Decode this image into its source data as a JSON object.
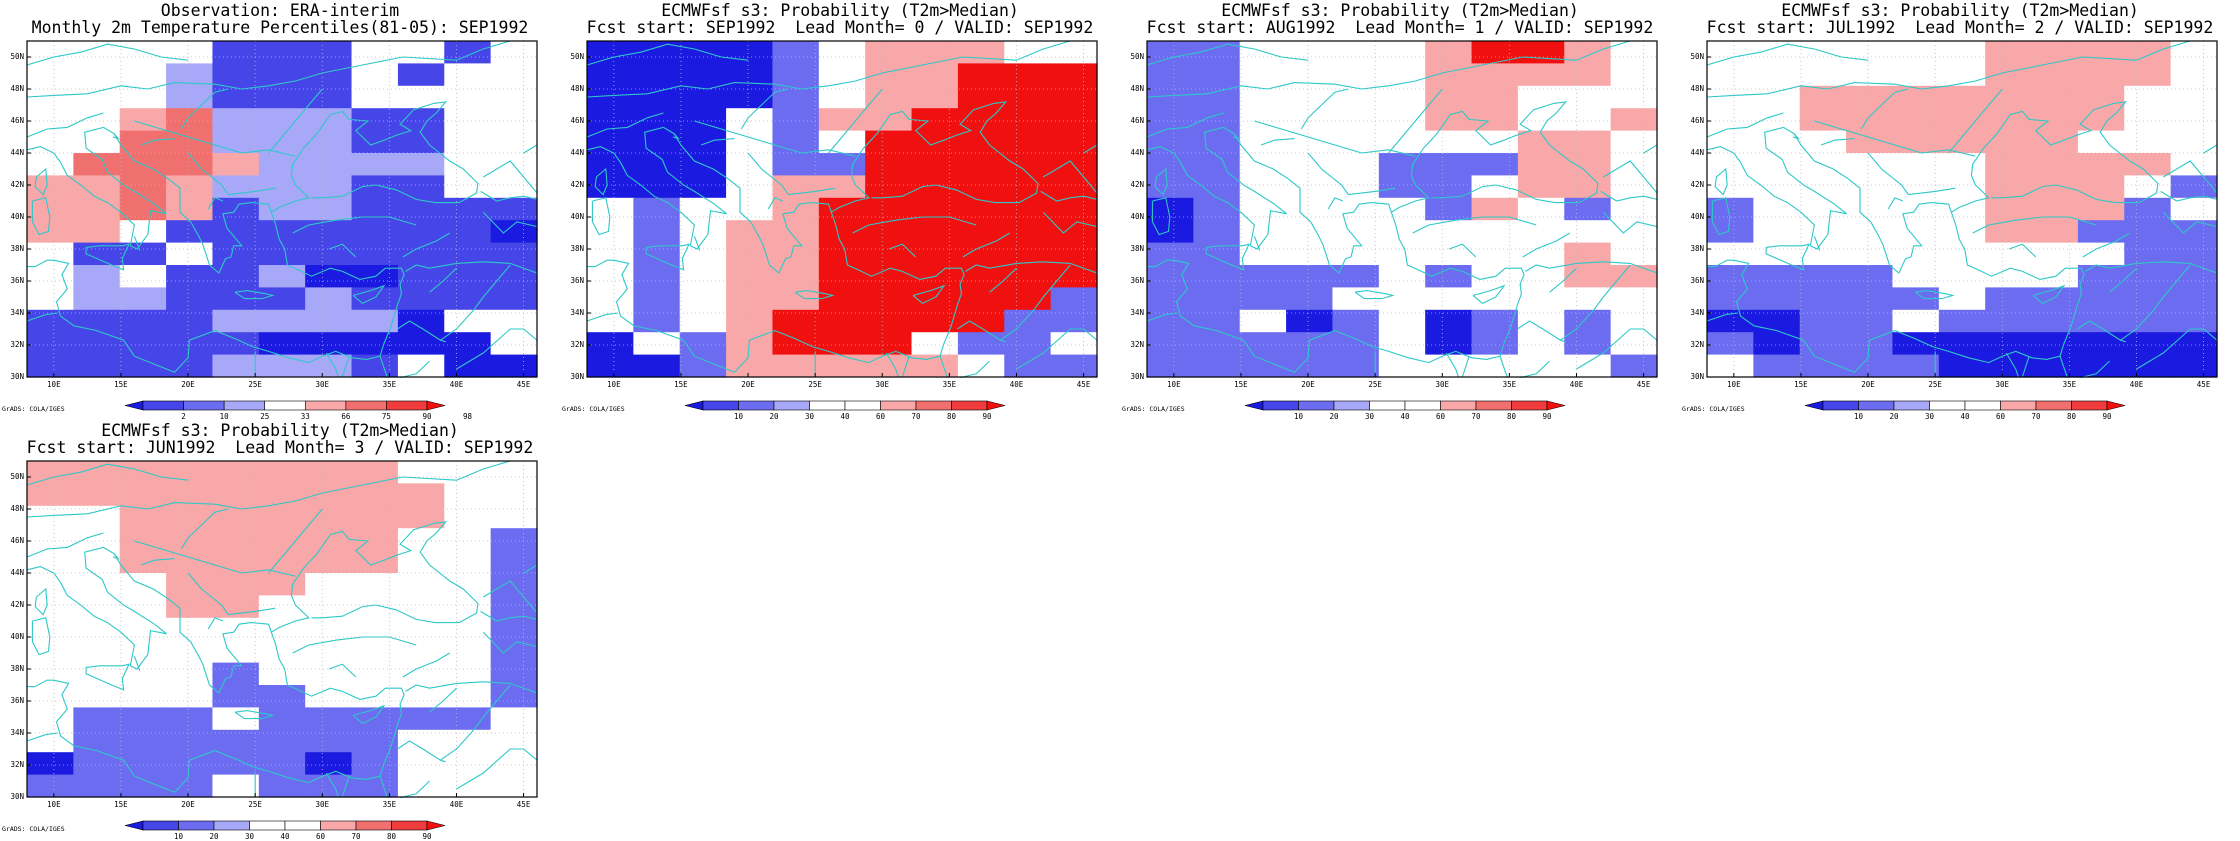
{
  "colors": {
    "legend_obs": [
      "#1a1ae0",
      "#4646e8",
      "#6c6cf0",
      "#a8a8f8",
      "#ffffff",
      "#f8a8a8",
      "#f07070",
      "#f03c3c",
      "#f01010"
    ],
    "legend_prob": [
      "#1a1ae0",
      "#4646e8",
      "#6c6cf0",
      "#a8a8f8",
      "#ffffff",
      "#ffffff",
      "#f8a8a8",
      "#f07070",
      "#f03c3c",
      "#f01010"
    ],
    "coast": "#2ec8c8",
    "grid": "#bbbbbb"
  },
  "map": {
    "lon_range": [
      8,
      46
    ],
    "lat_range": [
      30,
      51
    ],
    "lon_ticks": [
      "10E",
      "15E",
      "20E",
      "25E",
      "30E",
      "35E",
      "40E",
      "45E"
    ],
    "lat_ticks": [
      "30N",
      "32N",
      "34N",
      "36N",
      "38N",
      "40N",
      "42N",
      "44N",
      "46N",
      "48N",
      "50N"
    ],
    "credit": "GrADS: COLA/IGES"
  },
  "panels": [
    {
      "id": "obs",
      "title": "Observation: ERA-interim",
      "subtitle": "Monthly 2m Temperature Percentiles(81-05): SEP1992",
      "legend_type": "obs",
      "legend_labels": [
        "2",
        "10",
        "25",
        "33",
        "66",
        "75",
        "90",
        "98"
      ],
      "grid": [
        "WWWW222WW2W",
        "WWW3222W2WW",
        "WWW3222WWWW",
        "WW5633322WW",
        "WW6633322WW",
        "W66653333WW",
        "556533322WW",
        "55652332222",
        "55W22222221",
        "W22W2222222",
        "W3W22311222",
        "W3322232222",
        "222233331WW",
        "2222211111W",
        "22223332W11"
      ]
    },
    {
      "id": "lead0",
      "title": "ECMWFsf s3: Probability (T2m>Median)",
      "subtitle": "Fcst start: SEP1992  Lead Month= 0 / VALID: SEP1992",
      "legend_type": "prob",
      "legend_labels": [
        "10",
        "20",
        "30",
        "40",
        "60",
        "70",
        "80",
        "90"
      ],
      "grid": [
        "11110W777WW",
        "11110W77888",
        "11110W77888",
        "111W0778888",
        "111W0W88888",
        "111W0088888",
        "111W7788888",
        "W0WW7888888",
        "W0W77888888",
        "W0W77888888",
        "W0W77888888",
        "W0W77888880",
        "W0W78888800",
        "1W07888W00W",
        "11077777W00"
      ]
    },
    {
      "id": "lead1",
      "title": "ECMWFsf s3: Probability (T2m>Median)",
      "subtitle": "Fcst start: AUG1992  Lead Month= 1 / VALID: SEP1992",
      "legend_type": "prob",
      "legend_labels": [
        "10",
        "20",
        "30",
        "40",
        "60",
        "70",
        "80",
        "90"
      ],
      "grid": [
        "00WWWW7887W",
        "00WWWW7777W",
        "00WWWW77WWW",
        "00WWWW77WW7",
        "00WWWWWW77W",
        "00WWW00077W",
        "00WWW00W77W",
        "10WWWW07W0W",
        "10WWWWWWWWW",
        "00WWWWWWW7W",
        "00000W0WW77",
        "0000WWWWWWW",
        "00W10W10W0W",
        "00000W10W0W",
        "00000WWWWW0"
      ]
    },
    {
      "id": "lead2",
      "title": "ECMWFsf s3: Probability (T2m>Median)",
      "subtitle": "Fcst start: JUL1992  Lead Month= 2 / VALID: SEP1992",
      "legend_type": "prob",
      "legend_labels": [
        "10",
        "20",
        "30",
        "40",
        "60",
        "70",
        "80",
        "90"
      ],
      "grid": [
        "WWWWWW7777W",
        "WWWWWW7777W",
        "WW7777777WW",
        "WW7777777WW",
        "WWW77777WWW",
        "WWWWWW7777W",
        "WWWWWW777W0",
        "0WWWWW7770W",
        "0WWWWW77000",
        "WWWWWWWWW00",
        "0000WWWW000",
        "00000W00000",
        "1100W000000",
        "01001111111",
        "W0000111111"
      ]
    },
    {
      "id": "lead3",
      "title": "ECMWFsf s3: Probability (T2m>Median)",
      "subtitle": "Fcst start: JUN1992  Lead Month= 3 / VALID: SEP1992",
      "legend_type": "prob",
      "legend_labels": [
        "10",
        "20",
        "30",
        "40",
        "60",
        "70",
        "80",
        "90"
      ],
      "grid": [
        "77777777WWW",
        "777777777WW",
        "WW7777777WW",
        "WW777777WW0",
        "WW777777WW0",
        "WWW777WWWW0",
        "WWW77WWWWW0",
        "WWWWWWWWWW0",
        "WWWWWWWWWW0",
        "WWWW0WWWWW0",
        "WWWW00WWWW0",
        "W000W00000W",
        "W0000000WWW",
        "10000010WWW",
        "0000W000WWW"
      ]
    }
  ]
}
